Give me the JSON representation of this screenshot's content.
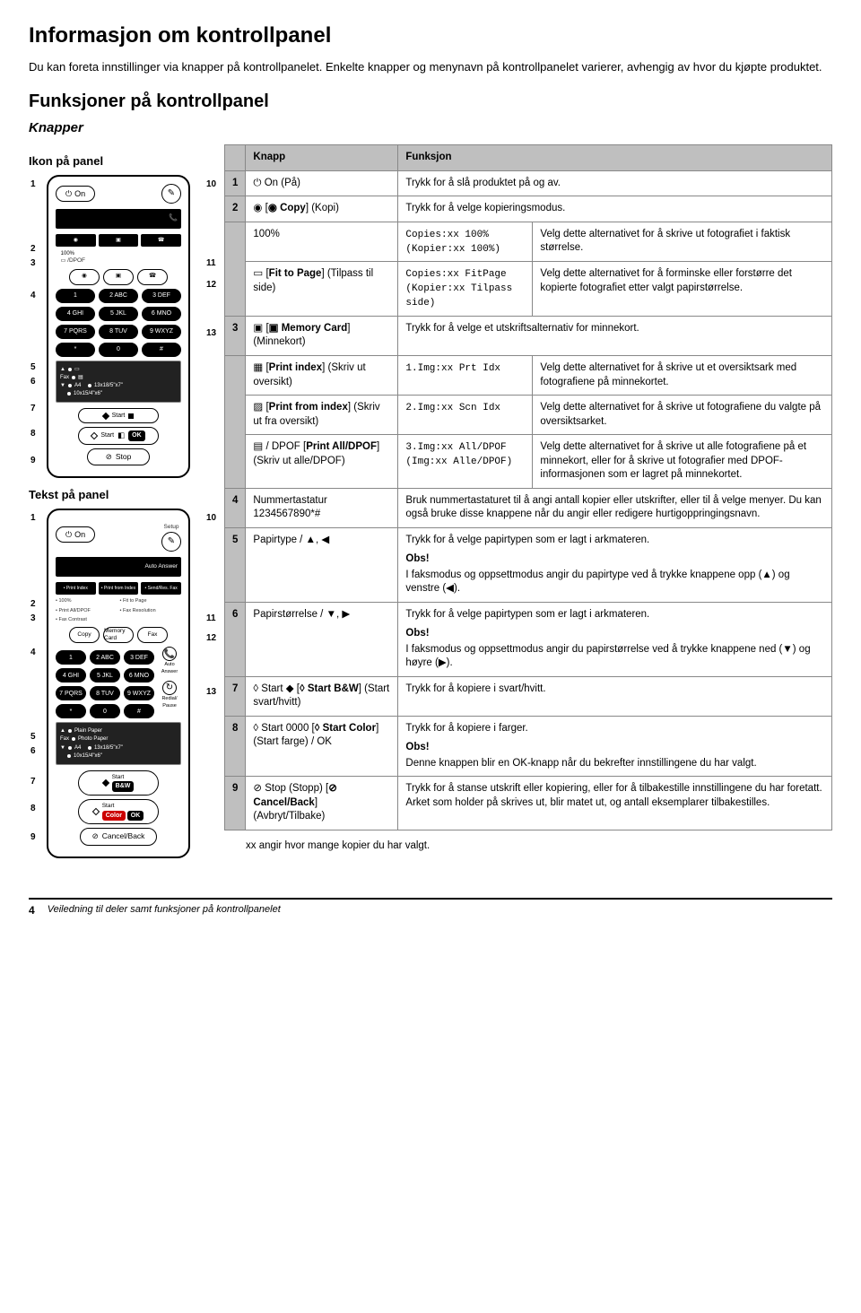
{
  "page": {
    "title": "Informasjon om kontrollpanel",
    "intro": "Du kan foreta innstillinger via knapper på kontrollpanelet. Enkelte knapper og menynavn på kontrollpanelet varierer, avhengig av hvor du kjøpte produktet.",
    "h2": "Funksjoner på kontrollpanel",
    "h3": "Knapper",
    "icon_panel_label": "Ikon på panel",
    "text_panel_label": "Tekst på panel",
    "footnote": "xx angir hvor mange kopier du har valgt.",
    "footer_num": "4",
    "footer_title": "Veiledning til deler samt funksjoner på kontrollpanelet"
  },
  "panel_icon": {
    "on": "On",
    "start": "Start",
    "stop": "Stop",
    "setup": "Setup",
    "a4": "A4",
    "size2": "10x15/4\"x6\"",
    "size1": "13x18/5\"x7\"",
    "fax": "Fax",
    "keys": [
      "1",
      "2 ABC",
      "3 DEF",
      "4 GHI",
      "5 JKL",
      "6 MNO",
      "7 PQRS",
      "8 TUV",
      "9 WXYZ",
      "*",
      "0",
      "#"
    ],
    "left_nums": [
      "1",
      "2",
      "3",
      "4",
      "5",
      "6",
      "7",
      "8",
      "9"
    ],
    "right_nums": [
      "10",
      "11",
      "12",
      "13"
    ]
  },
  "panel_text": {
    "on": "On",
    "setup": "Setup",
    "auto_answer": "Auto Answer",
    "grid1": [
      "Print Index",
      "Print from Index",
      "Send/Res. Fax"
    ],
    "grid2": [
      "100%",
      "Fit to Page",
      "Print All/DPOF",
      "Fax Resolution",
      "Fax Contrast"
    ],
    "copy": "Copy",
    "memcard": "Memory Card",
    "fax": "Fax",
    "autoans": "Auto Answer",
    "redial": "Redial/ Pause",
    "plain": "Plain Paper",
    "photo": "Photo Paper",
    "a4": "A4",
    "size1": "13x18/5\"x7\"",
    "size2": "10x15/4\"x6\"",
    "startbw": "B&W",
    "startcolor": "Color",
    "ok": "OK",
    "start": "Start",
    "cancel": "Cancel/Back",
    "keys": [
      "1",
      "2 ABC",
      "3 DEF",
      "4 GHI",
      "5 JKL",
      "6 MNO",
      "7 PQRS",
      "8 TUV",
      "9 WXYZ",
      "*",
      "0",
      "#"
    ],
    "left_nums": [
      "1",
      "2",
      "3",
      "4",
      "5",
      "6",
      "7",
      "8",
      "9"
    ],
    "right_nums": [
      "10",
      "11",
      "12",
      "13"
    ]
  },
  "table": {
    "head_knapp": "Knapp",
    "head_funksjon": "Funksjon",
    "rows": [
      {
        "num": "1",
        "btn": "⏻ On (På)",
        "func": "Trykk for å slå produktet på og av."
      },
      {
        "num": "2",
        "btn": "◉ [◉ Copy] (Kopi)",
        "func": "Trykk for å velge kopieringsmodus."
      },
      {
        "sub": true,
        "btn": "100%",
        "lcd": "Copies:xx 100%\n(Kopier:xx 100%)",
        "desc": "Velg dette alternativet for å skrive ut fotografiet i faktisk størrelse."
      },
      {
        "sub": true,
        "btn": "▭ [Fit to Page] (Tilpass til side)",
        "lcd": "Copies:xx FitPage\n(Kopier:xx Tilpass side)",
        "desc": "Velg dette alternativet for å forminske eller forstørre det kopierte fotografiet etter valgt papirstørrelse."
      },
      {
        "num": "3",
        "btn": "▣ [▣ Memory Card] (Minnekort)",
        "func": "Trykk for å velge et utskriftsalternativ for minnekort."
      },
      {
        "sub": true,
        "btn": "▦ [Print index] (Skriv ut oversikt)",
        "lcd": "1.Img:xx Prt Idx",
        "desc": "Velg dette alternativet for å skrive ut et oversiktsark med fotografiene på minnekortet."
      },
      {
        "sub": true,
        "btn": "▨ [Print from index] (Skriv ut fra oversikt)",
        "lcd": "2.Img:xx Scn Idx",
        "desc": "Velg dette alternativet for å skrive ut fotografiene du valgte på oversiktsarket."
      },
      {
        "sub": true,
        "btn": "▤ / DPOF [Print All/DPOF] (Skriv ut alle/DPOF)",
        "lcd": "3.Img:xx All/DPOF\n(Img:xx Alle/DPOF)",
        "desc": "Velg dette alternativet for å skrive ut alle fotografiene på et minnekort, eller for å skrive ut fotografier med DPOF-informasjonen som er lagret på minnekortet."
      },
      {
        "num": "4",
        "btn": "Nummertastatur\n1234567890*#",
        "func": "Bruk nummertastaturet til å angi antall kopier eller utskrifter, eller til å velge menyer. Du kan også bruke disse knappene når du angir eller redigere hurtigoppringingsnavn."
      },
      {
        "num": "5",
        "btn": "Papirtype / ▲, ◀",
        "func": "Trykk for å velge papirtypen som er lagt i arkmateren.",
        "note_head": "Obs!",
        "note": "I faksmodus og oppsettmodus angir du papirtype ved å trykke knappene opp (▲) og venstre (◀)."
      },
      {
        "num": "6",
        "btn": "Papirstørrelse / ▼, ▶",
        "func": "Trykk for å velge papirtypen som er lagt i arkmateren.",
        "note_head": "Obs!",
        "note": "I faksmodus og oppsettmodus angir du papirstørrelse ved å trykke knappene ned (▼) og høyre (▶)."
      },
      {
        "num": "7",
        "btn": "◊ Start ◆ [◊ Start B&W] (Start svart/hvitt)",
        "func": "Trykk for å kopiere i svart/hvitt."
      },
      {
        "num": "8",
        "btn": "◊ Start 0000 [◊ Start Color] (Start farge) / OK",
        "func": "Trykk for å kopiere i farger.",
        "note_head": "Obs!",
        "note": "Denne knappen blir en OK-knapp når du bekrefter innstillingene du har valgt."
      },
      {
        "num": "9",
        "btn": "⊘ Stop (Stopp) [⊘ Cancel/Back] (Avbryt/Tilbake)",
        "func": "Trykk for å stanse utskrift eller kopiering, eller for å tilbakestille innstillingene du har foretatt. Arket som holder på skrives ut, blir matet ut, og antall eksemplarer tilbakestilles."
      }
    ]
  }
}
